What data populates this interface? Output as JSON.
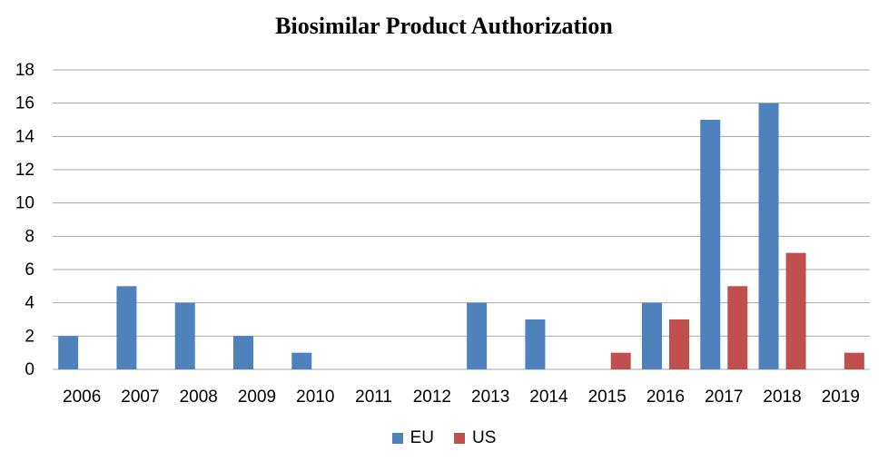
{
  "chart_data": {
    "type": "bar",
    "title": "Biosimilar Product Authorization",
    "xlabel": "",
    "ylabel": "",
    "categories": [
      "2006",
      "2007",
      "2008",
      "2009",
      "2010",
      "2011",
      "2012",
      "2013",
      "2014",
      "2015",
      "2016",
      "2017",
      "2018",
      "2019"
    ],
    "series": [
      {
        "name": "EU",
        "color": "#4f81bd",
        "values": [
          2,
          5,
          4,
          2,
          1,
          0,
          0,
          4,
          3,
          0,
          4,
          15,
          16,
          0
        ]
      },
      {
        "name": "US",
        "color": "#c0504d",
        "values": [
          0,
          0,
          0,
          0,
          0,
          0,
          0,
          0,
          0,
          1,
          3,
          5,
          7,
          1
        ]
      }
    ],
    "ylim": [
      0,
      18
    ],
    "yticks": [
      "0",
      "2",
      "4",
      "6",
      "8",
      "10",
      "12",
      "14",
      "16",
      "18"
    ],
    "grid": true,
    "legend_position": "bottom"
  }
}
